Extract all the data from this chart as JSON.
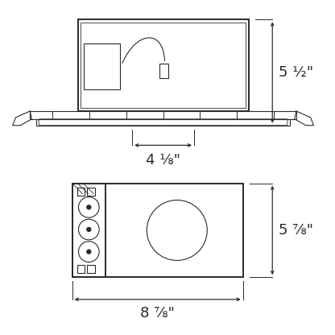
{
  "bg_color": "#ffffff",
  "lc": "#2a2a2a",
  "dc": "#2a2a2a",
  "fig_w": 4.16,
  "fig_h": 4.16,
  "dpi": 100,
  "top_dim_v": "5 ½\"",
  "top_dim_h": "4 ⅛\"",
  "bot_dim_v": "5 ⅞\"",
  "bot_dim_h": "8 ⅞\""
}
